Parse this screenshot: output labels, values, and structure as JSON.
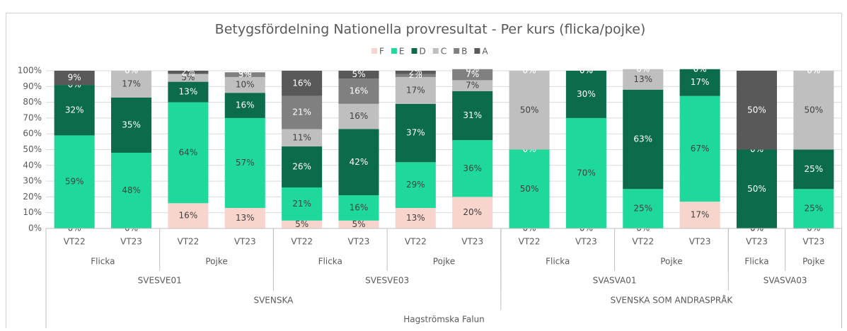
{
  "chart_data": {
    "type": "stacked_bar",
    "title": "Betygsfördelning Nationella provresultat - Per kurs (flicka/pojke)",
    "categories": [
      "VT22",
      "VT23",
      "VT22",
      "VT23",
      "VT22",
      "VT23",
      "VT22",
      "VT23",
      "VT22",
      "VT23",
      "VT22",
      "VT23",
      "VT23",
      "VT23"
    ],
    "category_groups": [
      [
        {
          "label": "Flicka",
          "count": 2
        },
        {
          "label": "Pojke",
          "count": 2
        },
        {
          "label": "Flicka",
          "count": 2
        },
        {
          "label": "Pojke",
          "count": 2
        },
        {
          "label": "Flicka",
          "count": 2
        },
        {
          "label": "Pojke",
          "count": 2
        },
        {
          "label": "Flicka",
          "count": 1
        },
        {
          "label": "Pojke",
          "count": 1
        }
      ],
      [
        {
          "label": "SVESVE01",
          "count": 4
        },
        {
          "label": "SVESVE03",
          "count": 4
        },
        {
          "label": "SVASVA01",
          "count": 4
        },
        {
          "label": "SVASVA03",
          "count": 2
        }
      ],
      [
        {
          "label": "SVENSKA",
          "count": 8
        },
        {
          "label": "SVENSKA SOM ANDRASPRÅK",
          "count": 6
        }
      ],
      [
        {
          "label": "Hagströmska Falun",
          "count": 14
        }
      ]
    ],
    "series": [
      {
        "name": "F",
        "color": "#f8d5cc",
        "values": [
          0,
          0,
          16,
          13,
          5,
          5,
          13,
          20,
          0,
          0,
          0,
          17,
          0,
          0
        ],
        "value_labels": [
          "0%",
          "0%",
          "16%",
          "13%",
          "5%",
          "5%",
          "13%",
          "20%",
          "0%",
          "0%",
          "0%",
          "17%",
          "0%",
          "0%"
        ]
      },
      {
        "name": "E",
        "color": "#1ed99b",
        "values": [
          59,
          48,
          64,
          57,
          21,
          16,
          29,
          36,
          50,
          70,
          25,
          67,
          0,
          25
        ],
        "value_labels": [
          "59%",
          "48%",
          "64%",
          "57%",
          "21%",
          "16%",
          "29%",
          "36%",
          "50%",
          "70%",
          "25%",
          "67%",
          "0%",
          "25%"
        ]
      },
      {
        "name": "D",
        "color": "#0b6b4b",
        "values": [
          32,
          35,
          13,
          16,
          26,
          42,
          37,
          31,
          0,
          30,
          63,
          17,
          50,
          25
        ],
        "value_labels": [
          "32%",
          "35%",
          "13%",
          "16%",
          "26%",
          "42%",
          "37%",
          "31%",
          "0%",
          "30%",
          "63%",
          "17%",
          "50%",
          "25%"
        ]
      },
      {
        "name": "C",
        "color": "#bfbfbf",
        "values": [
          0,
          17,
          5,
          10,
          11,
          16,
          17,
          7,
          50,
          0,
          13,
          0,
          0,
          50
        ],
        "value_labels": [
          "0%",
          "17%",
          "5%",
          "10%",
          "11%",
          "16%",
          "17%",
          "7%",
          "50%",
          "0%",
          "13%",
          "0%",
          "0%",
          "50%"
        ]
      },
      {
        "name": "B",
        "color": "#808080",
        "values": [
          0,
          0,
          0,
          3,
          21,
          16,
          2,
          7,
          0,
          0,
          0,
          0,
          0,
          0
        ],
        "value_labels": [
          "0%",
          "0%",
          "0%",
          "3%",
          "21%",
          "16%",
          "2%",
          "7%",
          "0%",
          "0%",
          "0%",
          "0%",
          "0%",
          "0%"
        ]
      },
      {
        "name": "A",
        "color": "#595959",
        "values": [
          9,
          0,
          2,
          0,
          16,
          5,
          2,
          0,
          0,
          0,
          0,
          0,
          50,
          0
        ],
        "value_labels": [
          "9%",
          "0%",
          "2%",
          "0%",
          "16%",
          "5%",
          "2%",
          "0%",
          "0%",
          "0%",
          "0%",
          "0%",
          "50%",
          "0%"
        ]
      }
    ],
    "ylim": [
      0,
      100
    ],
    "yticks": [
      {
        "value": 0,
        "label": "0%"
      },
      {
        "value": 10,
        "label": "10%"
      },
      {
        "value": 20,
        "label": "20%"
      },
      {
        "value": 30,
        "label": "30%"
      },
      {
        "value": 40,
        "label": "40%"
      },
      {
        "value": 50,
        "label": "50%"
      },
      {
        "value": 60,
        "label": "60%"
      },
      {
        "value": 70,
        "label": "70%"
      },
      {
        "value": 80,
        "label": "80%"
      },
      {
        "value": 90,
        "label": "90%"
      },
      {
        "value": 100,
        "label": "100%"
      }
    ],
    "grid": true,
    "legend": "top"
  }
}
